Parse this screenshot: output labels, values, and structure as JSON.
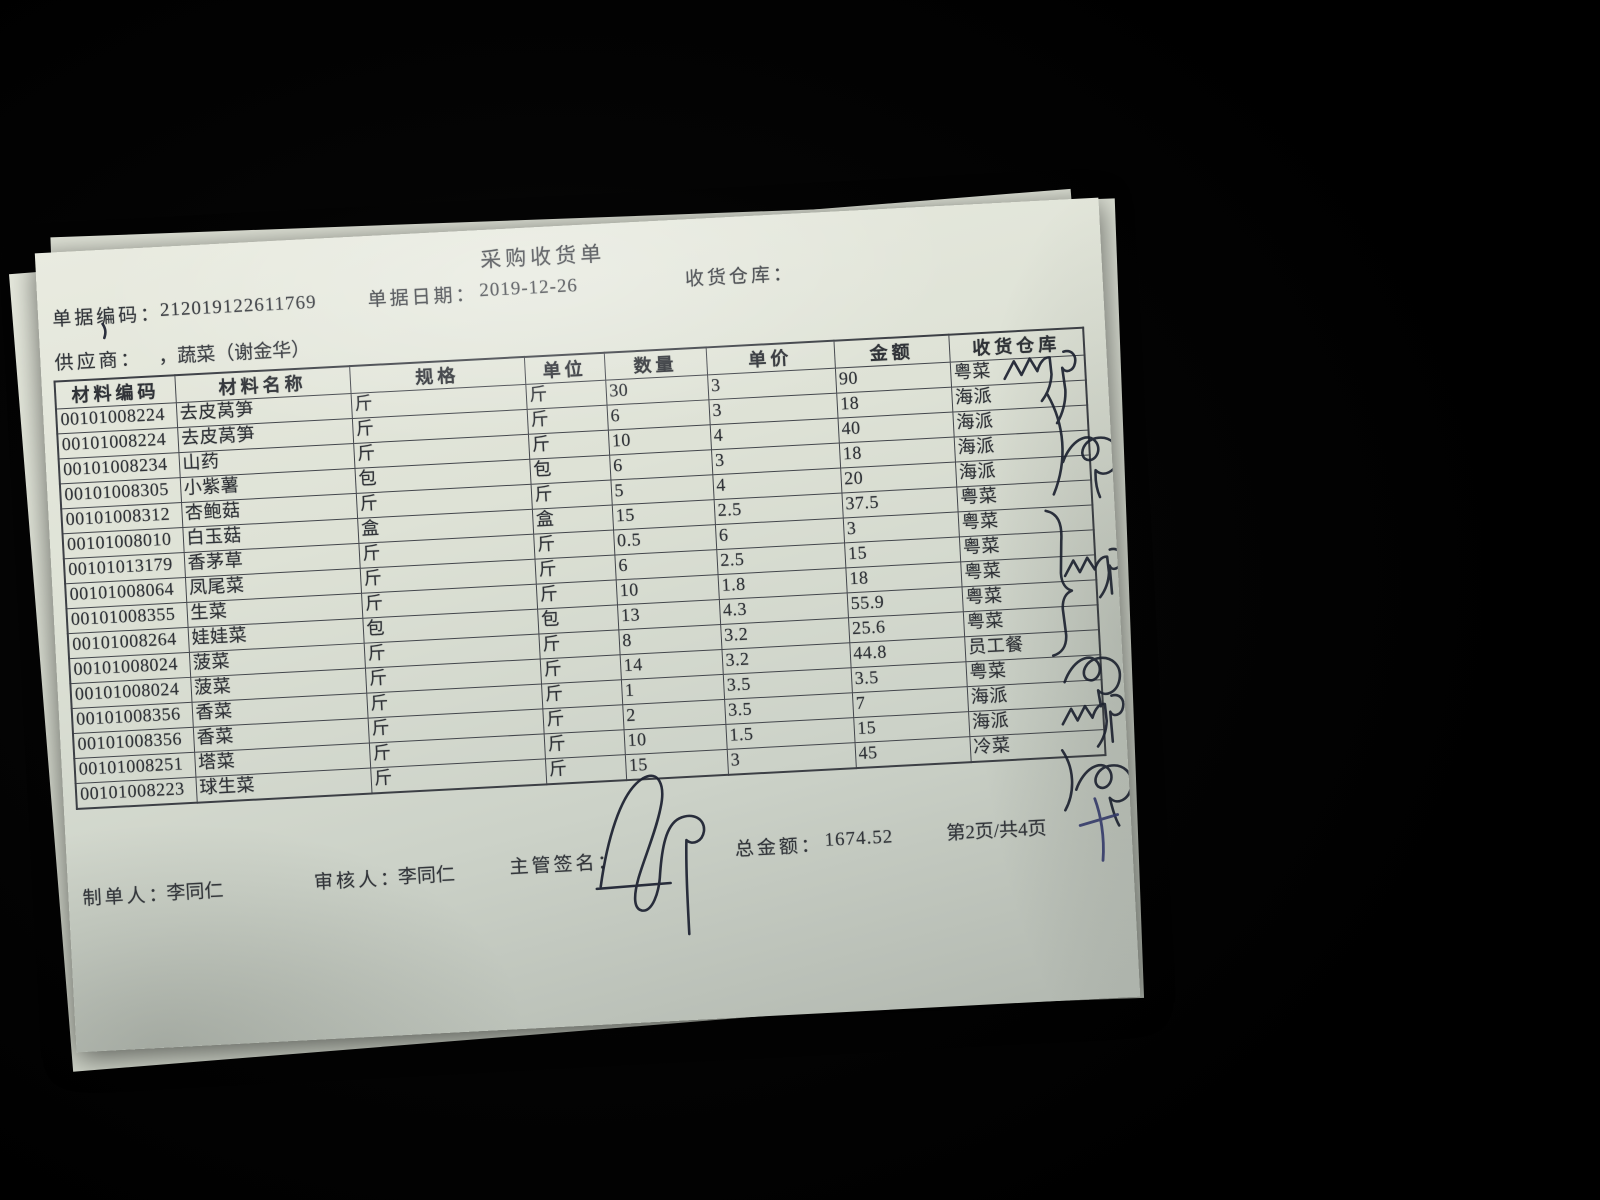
{
  "document": {
    "title": "采购收货单",
    "meta": {
      "doc_no_label": "单据编码：",
      "doc_no": "212019122611769",
      "date_label": "单据日期：",
      "date": "2019-12-26",
      "warehouse_label": "收货仓库：",
      "warehouse": "",
      "supplier_label": "供应商：",
      "supplier": "，蔬菜（谢金华）"
    },
    "table": {
      "headers": [
        "材料编码",
        "材料名称",
        "规格",
        "单位",
        "数量",
        "单价",
        "金额",
        "收货仓库"
      ],
      "rows": [
        [
          "00101008224",
          "去皮莴笋",
          "斤",
          "斤",
          "30",
          "3",
          "90",
          "粤菜"
        ],
        [
          "00101008224",
          "去皮莴笋",
          "斤",
          "斤",
          "6",
          "3",
          "18",
          "海派"
        ],
        [
          "00101008234",
          "山药",
          "斤",
          "斤",
          "10",
          "4",
          "40",
          "海派"
        ],
        [
          "00101008305",
          "小紫薯",
          "包",
          "包",
          "6",
          "3",
          "18",
          "海派"
        ],
        [
          "00101008312",
          "杏鲍菇",
          "斤",
          "斤",
          "5",
          "4",
          "20",
          "海派"
        ],
        [
          "00101008010",
          "白玉菇",
          "盒",
          "盒",
          "15",
          "2.5",
          "37.5",
          "粤菜"
        ],
        [
          "00101013179",
          "香茅草",
          "斤",
          "斤",
          "0.5",
          "6",
          "3",
          "粤菜"
        ],
        [
          "00101008064",
          "凤尾菜",
          "斤",
          "斤",
          "6",
          "2.5",
          "15",
          "粤菜"
        ],
        [
          "00101008355",
          "生菜",
          "斤",
          "斤",
          "10",
          "1.8",
          "18",
          "粤菜"
        ],
        [
          "00101008264",
          "娃娃菜",
          "包",
          "包",
          "13",
          "4.3",
          "55.9",
          "粤菜"
        ],
        [
          "00101008024",
          "菠菜",
          "斤",
          "斤",
          "8",
          "3.2",
          "25.6",
          "粤菜"
        ],
        [
          "00101008024",
          "菠菜",
          "斤",
          "斤",
          "14",
          "3.2",
          "44.8",
          "员工餐"
        ],
        [
          "00101008356",
          "香菜",
          "斤",
          "斤",
          "1",
          "3.5",
          "3.5",
          "粤菜"
        ],
        [
          "00101008356",
          "香菜",
          "斤",
          "斤",
          "2",
          "3.5",
          "7",
          "海派"
        ],
        [
          "00101008251",
          "塔菜",
          "斤",
          "斤",
          "10",
          "1.5",
          "15",
          "海派"
        ],
        [
          "00101008223",
          "球生菜",
          "斤",
          "斤",
          "15",
          "3",
          "45",
          "冷菜"
        ]
      ]
    },
    "footer": {
      "maker_label": "制单人：",
      "maker": "李同仁",
      "auditor_label": "审核人：",
      "auditor": "李同仁",
      "sign_label": "主管签名：",
      "total_label": "总金额：",
      "total": "1674.52",
      "page_info": "第2页/共4页"
    },
    "handwriting": {
      "supervisor_signature": "handwritten-signature-scribble",
      "warehouse_column_marks": "handwritten-confirmation-scribbles"
    },
    "colors": {
      "background": "#000000",
      "paper": "#dde1d5",
      "print_ink": "#303338",
      "pen_ink": "#1b2030",
      "pen_ink_blue": "#343a6e",
      "table_border": "#43464c"
    }
  }
}
